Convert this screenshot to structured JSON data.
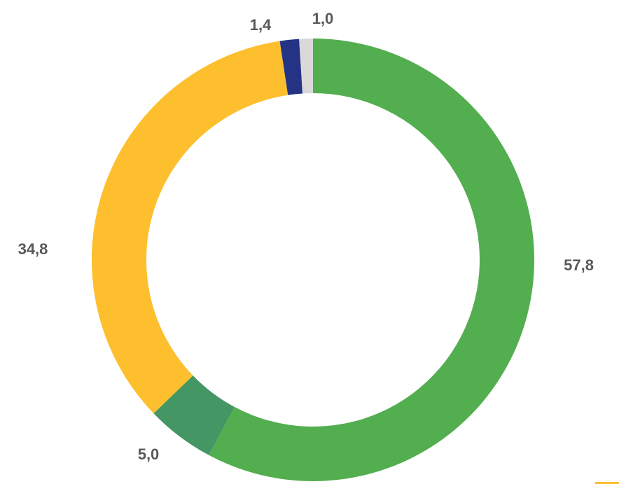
{
  "chart_data": {
    "type": "pie",
    "variant": "donut",
    "title": "",
    "legend": "none",
    "slices": [
      {
        "label": "57,8",
        "value": 57.8,
        "color": "#52AE4F"
      },
      {
        "label": "5,0",
        "value": 5.0,
        "color": "#449665"
      },
      {
        "label": "34,8",
        "value": 34.8,
        "color": "#FDBF2D"
      },
      {
        "label": "1,4",
        "value": 1.4,
        "color": "#253385"
      },
      {
        "label": "1,0",
        "value": 1.0,
        "color": "#D9D9D9"
      }
    ],
    "legend_hint_color": "#FDBF2D"
  }
}
